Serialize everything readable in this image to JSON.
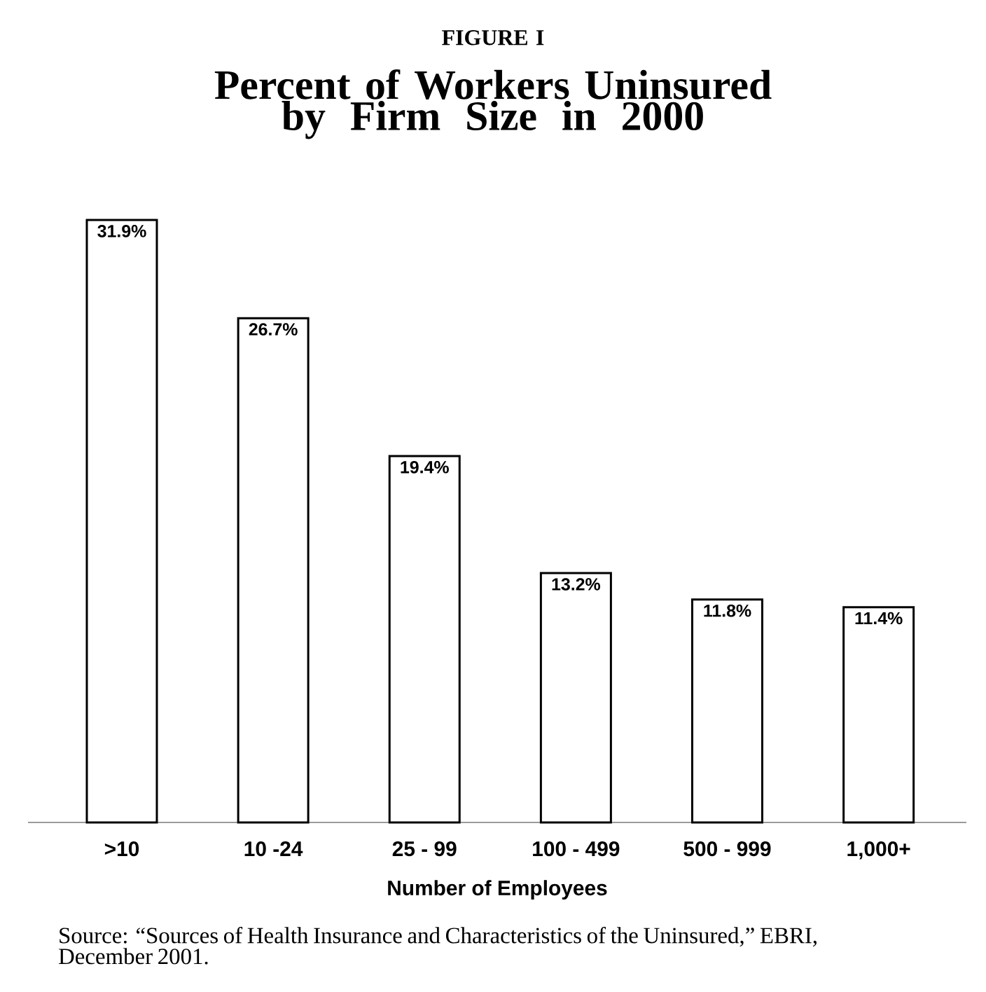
{
  "chart_data": {
    "type": "bar",
    "subtitle": "FIGURE I",
    "title": "Percent of Workers Uninsured by Firm Size in 2000",
    "categories": [
      ">10",
      "10 -24",
      "25 - 99",
      "100 - 499",
      "500 - 999",
      "1,000+"
    ],
    "values": [
      31.9,
      26.7,
      19.4,
      13.2,
      11.8,
      11.4
    ],
    "value_labels": [
      "31.9%",
      "26.7%",
      "19.4%",
      "13.2%",
      "11.8%",
      "11.4%"
    ],
    "color": "#ffffff",
    "xlabel": "Number of Employees",
    "annotations": [
      "Source: “Sources of Health Insurance and Characteristics of the Uninsured,” EBRI, December 2001."
    ],
    "orientation": "vertical"
  }
}
